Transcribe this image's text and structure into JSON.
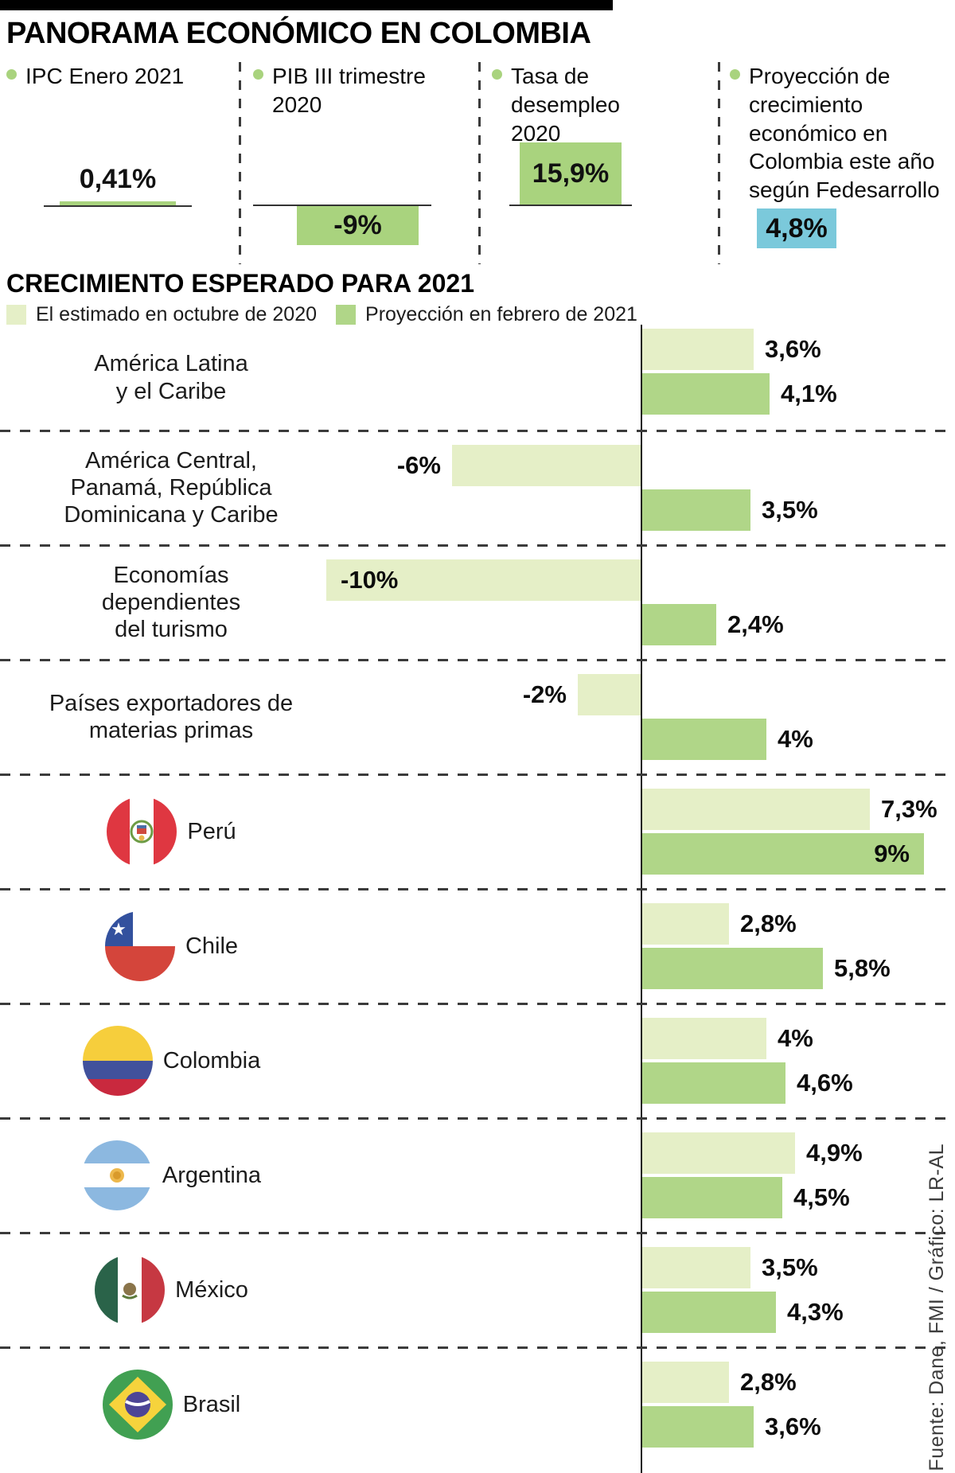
{
  "page": {
    "title": "PANORAMA ECONÓMICO EN COLOMBIA"
  },
  "colors": {
    "stat_green": "#A9D37E",
    "series_oct_light_green": "#E5EFC7",
    "series_feb_green": "#B0D688",
    "highlight_cyan": "#7BC9DB"
  },
  "top_stats": [
    {
      "label": "IPC Enero 2021",
      "value": "0,41%",
      "numeric": 0.41,
      "bar_direction": "up"
    },
    {
      "label": "PIB III trimestre 2020",
      "value": "-9%",
      "numeric": -9,
      "bar_direction": "down"
    },
    {
      "label": "Tasa de desempleo 2020",
      "value": "15,9%",
      "numeric": 15.9,
      "bar_direction": "up"
    },
    {
      "label": "Proyección de crecimiento económico en Colombia este año según Fedesarrollo",
      "value": "4,8%",
      "numeric": 4.8,
      "bar_direction": "highlight"
    }
  ],
  "chart_data": {
    "type": "bar",
    "orientation": "horizontal",
    "title": "CRECIMIENTO ESPERADO PARA 2021",
    "unit": "%",
    "legend_position": "top",
    "axis": {
      "zero_line": true,
      "gridlines": false,
      "xlim": [
        -10,
        9
      ]
    },
    "categories": [
      "América Latina y el Caribe",
      "América Central, Panamá, República Dominicana y Caribe",
      "Economías dependientes del turismo",
      "Países exportadores de materias primas",
      "Perú",
      "Chile",
      "Colombia",
      "Argentina",
      "México",
      "Brasil"
    ],
    "series": [
      {
        "name": "El estimado en octubre de 2020",
        "color": "#E5EFC7",
        "values": [
          3.6,
          -6,
          -10,
          -2,
          7.3,
          2.8,
          4,
          4.9,
          3.5,
          2.8
        ]
      },
      {
        "name": "Proyección en febrero de 2021",
        "color": "#B0D688",
        "values": [
          4.1,
          3.5,
          2.4,
          4,
          9,
          5.8,
          4.6,
          4.5,
          4.3,
          3.6
        ]
      }
    ],
    "rows": [
      {
        "label_lines": [
          "América Latina",
          "y el Caribe"
        ],
        "flag": null,
        "oct": {
          "v": 3.6,
          "label": "3,6%",
          "placement": "out"
        },
        "feb": {
          "v": 4.1,
          "label": "4,1%",
          "placement": "out"
        }
      },
      {
        "label_lines": [
          "América Central,",
          "Panamá, República",
          "Dominicana y Caribe"
        ],
        "flag": null,
        "oct": {
          "v": -6,
          "label": "-6%",
          "placement": "out"
        },
        "feb": {
          "v": 3.5,
          "label": "3,5%",
          "placement": "out"
        }
      },
      {
        "label_lines": [
          "Economías",
          "dependientes",
          "del turismo"
        ],
        "flag": null,
        "oct": {
          "v": -10,
          "label": "-10%",
          "placement": "in"
        },
        "feb": {
          "v": 2.4,
          "label": "2,4%",
          "placement": "out"
        }
      },
      {
        "label_lines": [
          "Países exportadores de",
          "materias primas"
        ],
        "flag": null,
        "oct": {
          "v": -2,
          "label": "-2%",
          "placement": "out"
        },
        "feb": {
          "v": 4,
          "label": "4%",
          "placement": "out"
        }
      },
      {
        "label_lines": [
          "Perú"
        ],
        "flag": "peru",
        "oct": {
          "v": 7.3,
          "label": "7,3%",
          "placement": "out"
        },
        "feb": {
          "v": 9,
          "label": "9%",
          "placement": "in"
        }
      },
      {
        "label_lines": [
          "Chile"
        ],
        "flag": "chile",
        "oct": {
          "v": 2.8,
          "label": "2,8%",
          "placement": "out"
        },
        "feb": {
          "v": 5.8,
          "label": "5,8%",
          "placement": "out"
        }
      },
      {
        "label_lines": [
          "Colombia"
        ],
        "flag": "colombia",
        "oct": {
          "v": 4,
          "label": "4%",
          "placement": "out"
        },
        "feb": {
          "v": 4.6,
          "label": "4,6%",
          "placement": "out"
        }
      },
      {
        "label_lines": [
          "Argentina"
        ],
        "flag": "argentina",
        "oct": {
          "v": 4.9,
          "label": "4,9%",
          "placement": "out"
        },
        "feb": {
          "v": 4.5,
          "label": "4,5%",
          "placement": "out"
        }
      },
      {
        "label_lines": [
          "México"
        ],
        "flag": "mexico",
        "oct": {
          "v": 3.5,
          "label": "3,5%",
          "placement": "out"
        },
        "feb": {
          "v": 4.3,
          "label": "4,3%",
          "placement": "out"
        }
      },
      {
        "label_lines": [
          "Brasil"
        ],
        "flag": "brasil",
        "oct": {
          "v": 2.8,
          "label": "2,8%",
          "placement": "out"
        },
        "feb": {
          "v": 3.6,
          "label": "3,6%",
          "placement": "out"
        }
      }
    ]
  },
  "source": {
    "text": "Fuente: Dane, FMI / Gráfico: LR-AL"
  }
}
